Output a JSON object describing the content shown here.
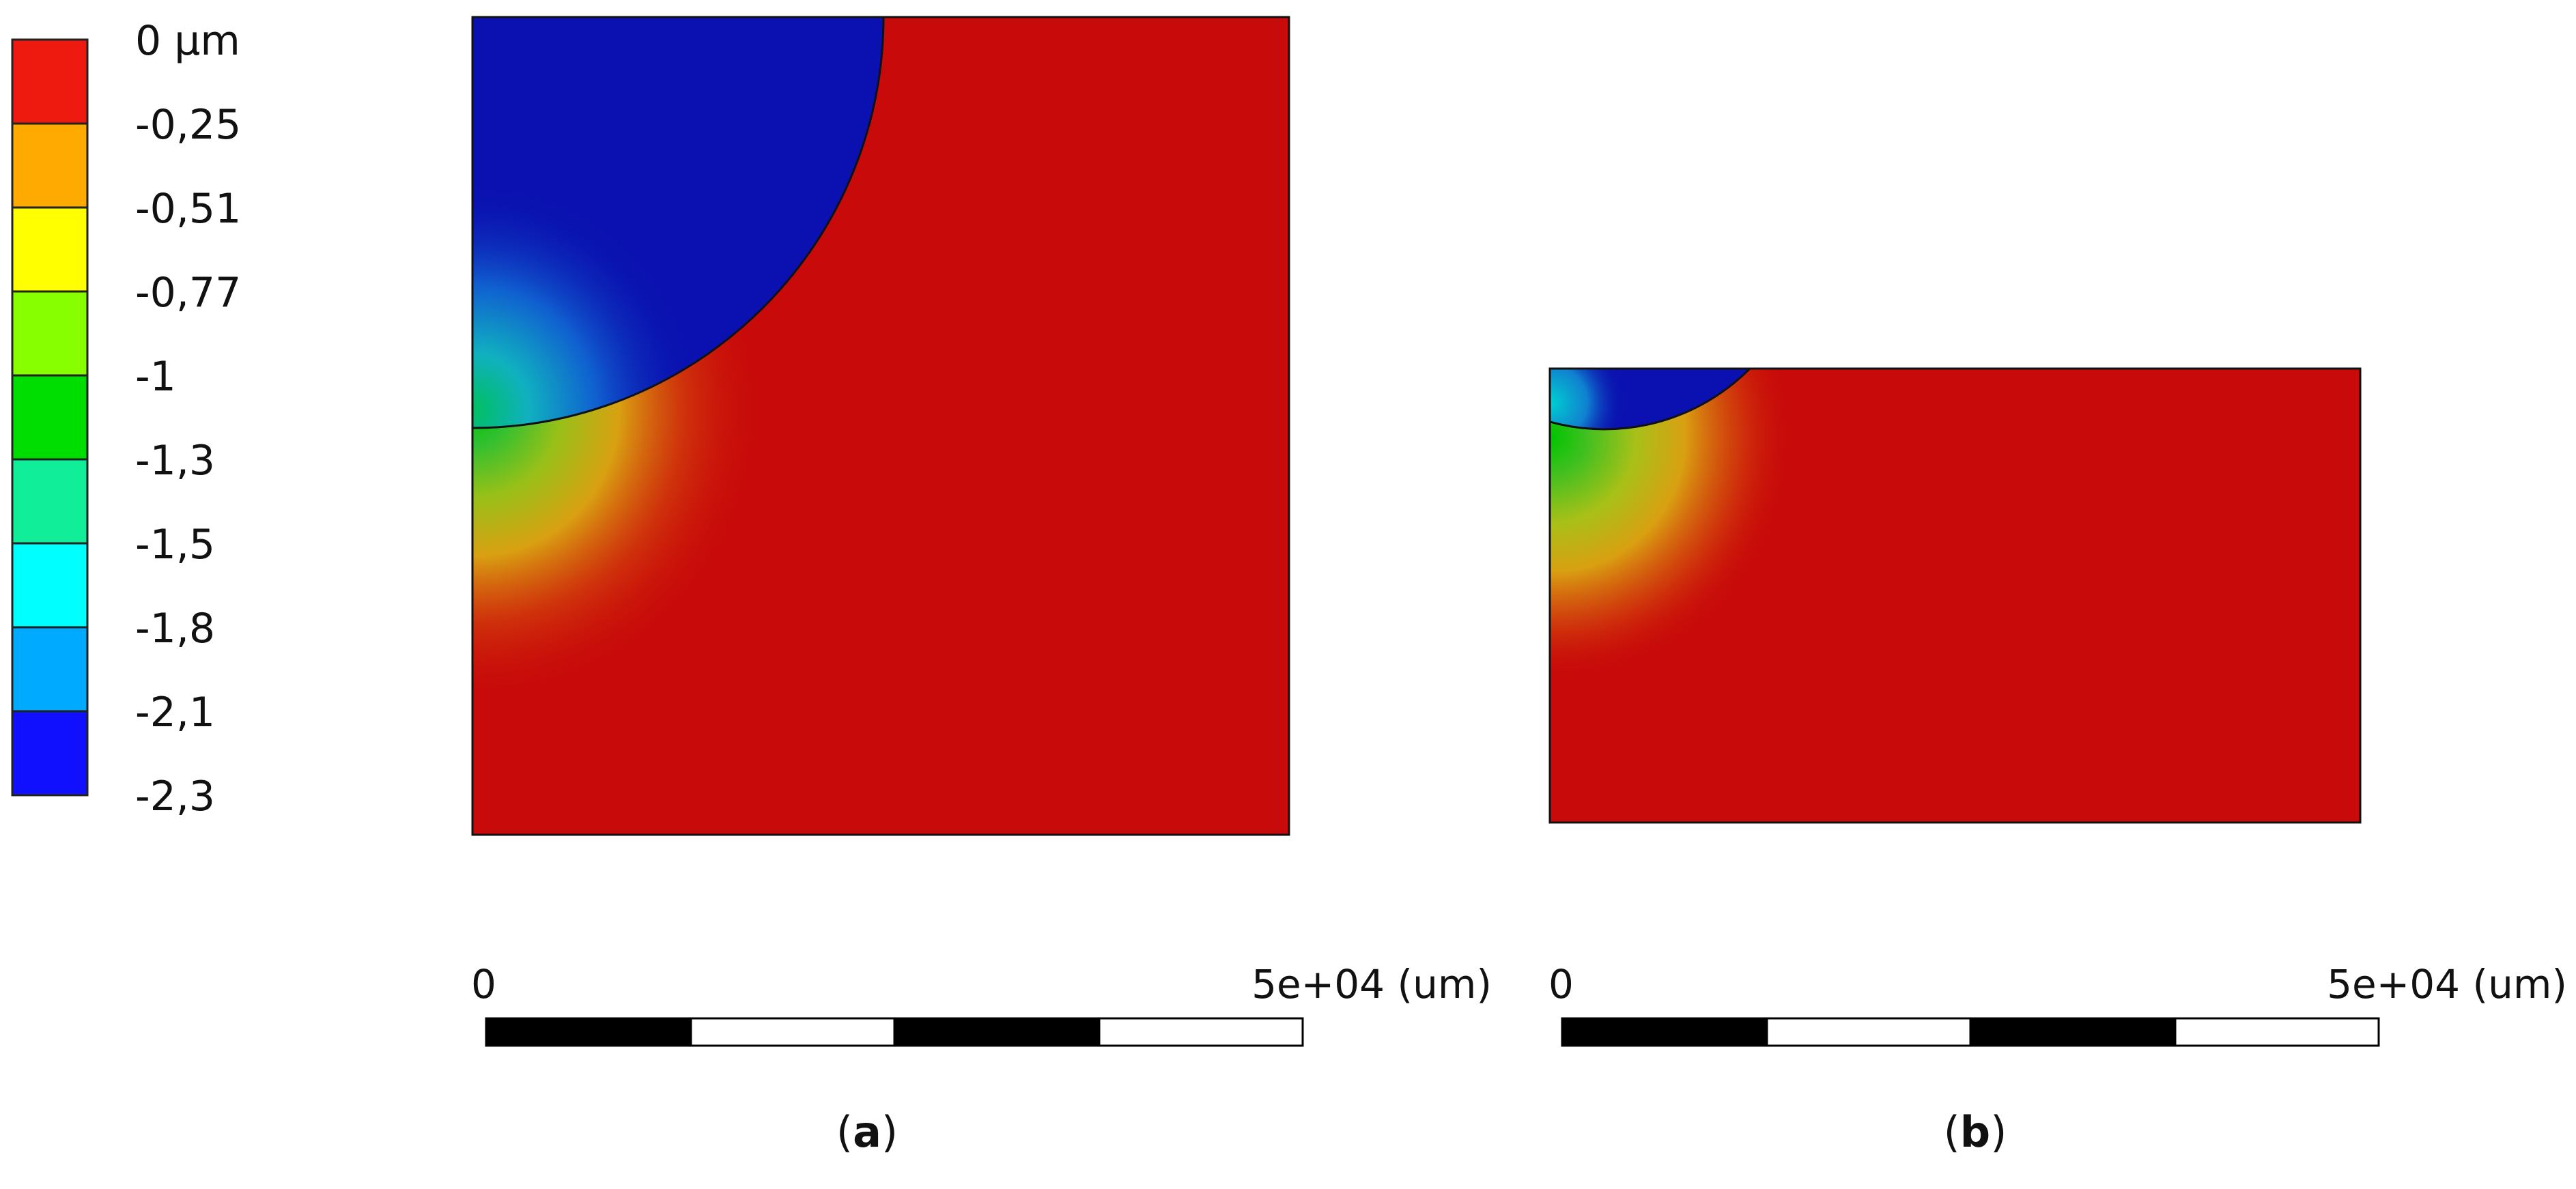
{
  "legend": {
    "unit": "µm",
    "labels": [
      "0",
      "-0,25",
      "-0,51",
      "-0,77",
      "-1",
      "-1,3",
      "-1,5",
      "-1,8",
      "-2,1",
      "-2,3"
    ],
    "colors": [
      "#ee1a10",
      "#ffaa00",
      "#ffff00",
      "#88ff00",
      "#00dd00",
      "#10ee99",
      "#00ffff",
      "#00aaff",
      "#1010ff"
    ]
  },
  "colors": {
    "far_field": "#c80a0a",
    "contact_zone": "#0a11b0",
    "scale_black": "#000000",
    "scale_white": "#ffffff"
  },
  "panels": [
    {
      "id": "a",
      "caption_letter": "a",
      "scale": {
        "start": "0",
        "end": "5e+04 (um)"
      }
    },
    {
      "id": "b",
      "caption_letter": "b",
      "scale": {
        "start": "0",
        "end": "5e+04 (um)"
      }
    }
  ]
}
